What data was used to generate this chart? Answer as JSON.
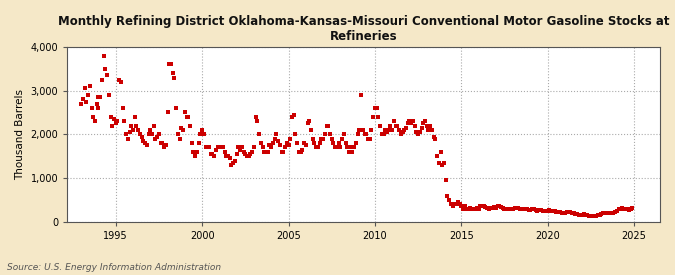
{
  "title": "Monthly Refining District Oklahoma-Kansas-Missouri Conventional Motor Gasoline Stocks at\nRefineries",
  "ylabel": "Thousand Barrels",
  "source": "Source: U.S. Energy Information Administration",
  "fig_background_color": "#f5e8c8",
  "plot_background_color": "#ffffff",
  "dot_color": "#cc0000",
  "ylim": [
    0,
    4000
  ],
  "yticks": [
    0,
    1000,
    2000,
    3000,
    4000
  ],
  "ytick_labels": [
    "0",
    "1,000",
    "2,000",
    "3,000",
    "4,000"
  ],
  "xticks": [
    1995,
    2000,
    2005,
    2010,
    2015,
    2020,
    2025
  ],
  "xlim_start": 1992.2,
  "xlim_end": 2026.5,
  "data": [
    [
      1993.0,
      2700
    ],
    [
      1993.1,
      2800
    ],
    [
      1993.2,
      3050
    ],
    [
      1993.3,
      2750
    ],
    [
      1993.4,
      2900
    ],
    [
      1993.5,
      3100
    ],
    [
      1993.6,
      2600
    ],
    [
      1993.7,
      2400
    ],
    [
      1993.8,
      2300
    ],
    [
      1993.9,
      2700
    ],
    [
      1993.95,
      2850
    ],
    [
      1994.0,
      2600
    ],
    [
      1994.1,
      2850
    ],
    [
      1994.2,
      3250
    ],
    [
      1994.3,
      3800
    ],
    [
      1994.4,
      3500
    ],
    [
      1994.5,
      3350
    ],
    [
      1994.6,
      2900
    ],
    [
      1994.7,
      2400
    ],
    [
      1994.8,
      2200
    ],
    [
      1994.9,
      2350
    ],
    [
      1995.0,
      2250
    ],
    [
      1995.1,
      2300
    ],
    [
      1995.2,
      3250
    ],
    [
      1995.3,
      3200
    ],
    [
      1995.4,
      2600
    ],
    [
      1995.5,
      2300
    ],
    [
      1995.6,
      2000
    ],
    [
      1995.7,
      1900
    ],
    [
      1995.8,
      2050
    ],
    [
      1995.9,
      2200
    ],
    [
      1996.0,
      2100
    ],
    [
      1996.1,
      2400
    ],
    [
      1996.2,
      2200
    ],
    [
      1996.3,
      2100
    ],
    [
      1996.4,
      2000
    ],
    [
      1996.5,
      1950
    ],
    [
      1996.6,
      1850
    ],
    [
      1996.7,
      1800
    ],
    [
      1996.8,
      1750
    ],
    [
      1996.9,
      2000
    ],
    [
      1997.0,
      2100
    ],
    [
      1997.1,
      2000
    ],
    [
      1997.2,
      2200
    ],
    [
      1997.3,
      1900
    ],
    [
      1997.4,
      1950
    ],
    [
      1997.5,
      2000
    ],
    [
      1997.6,
      1800
    ],
    [
      1997.7,
      1800
    ],
    [
      1997.8,
      1700
    ],
    [
      1997.9,
      1750
    ],
    [
      1998.0,
      2500
    ],
    [
      1998.1,
      3600
    ],
    [
      1998.2,
      3600
    ],
    [
      1998.3,
      3400
    ],
    [
      1998.4,
      3300
    ],
    [
      1998.5,
      2600
    ],
    [
      1998.6,
      2000
    ],
    [
      1998.7,
      1900
    ],
    [
      1998.8,
      2150
    ],
    [
      1998.9,
      2100
    ],
    [
      1999.0,
      2500
    ],
    [
      1999.1,
      2400
    ],
    [
      1999.2,
      2400
    ],
    [
      1999.3,
      2200
    ],
    [
      1999.4,
      1800
    ],
    [
      1999.5,
      1600
    ],
    [
      1999.6,
      1500
    ],
    [
      1999.7,
      1600
    ],
    [
      1999.8,
      1800
    ],
    [
      1999.9,
      2000
    ],
    [
      2000.0,
      2100
    ],
    [
      2000.1,
      2000
    ],
    [
      2000.2,
      1700
    ],
    [
      2000.3,
      1700
    ],
    [
      2000.4,
      1700
    ],
    [
      2000.5,
      1550
    ],
    [
      2000.6,
      1550
    ],
    [
      2000.7,
      1500
    ],
    [
      2000.8,
      1650
    ],
    [
      2000.9,
      1700
    ],
    [
      2001.0,
      1700
    ],
    [
      2001.1,
      1700
    ],
    [
      2001.2,
      1700
    ],
    [
      2001.3,
      1600
    ],
    [
      2001.4,
      1500
    ],
    [
      2001.5,
      1500
    ],
    [
      2001.6,
      1450
    ],
    [
      2001.7,
      1300
    ],
    [
      2001.8,
      1350
    ],
    [
      2001.9,
      1400
    ],
    [
      2002.0,
      1550
    ],
    [
      2002.1,
      1700
    ],
    [
      2002.2,
      1650
    ],
    [
      2002.3,
      1700
    ],
    [
      2002.4,
      1600
    ],
    [
      2002.5,
      1550
    ],
    [
      2002.6,
      1500
    ],
    [
      2002.7,
      1500
    ],
    [
      2002.8,
      1550
    ],
    [
      2002.9,
      1600
    ],
    [
      2003.0,
      1700
    ],
    [
      2003.1,
      2400
    ],
    [
      2003.2,
      2300
    ],
    [
      2003.3,
      2000
    ],
    [
      2003.4,
      1800
    ],
    [
      2003.5,
      1700
    ],
    [
      2003.6,
      1600
    ],
    [
      2003.7,
      1600
    ],
    [
      2003.8,
      1600
    ],
    [
      2003.9,
      1750
    ],
    [
      2004.0,
      1700
    ],
    [
      2004.1,
      1800
    ],
    [
      2004.2,
      1900
    ],
    [
      2004.3,
      2000
    ],
    [
      2004.4,
      1850
    ],
    [
      2004.5,
      1750
    ],
    [
      2004.6,
      1600
    ],
    [
      2004.7,
      1600
    ],
    [
      2004.8,
      1700
    ],
    [
      2004.9,
      1800
    ],
    [
      2005.0,
      1750
    ],
    [
      2005.1,
      1900
    ],
    [
      2005.2,
      2400
    ],
    [
      2005.3,
      2450
    ],
    [
      2005.4,
      2000
    ],
    [
      2005.5,
      1800
    ],
    [
      2005.6,
      1600
    ],
    [
      2005.7,
      1600
    ],
    [
      2005.8,
      1650
    ],
    [
      2005.9,
      1800
    ],
    [
      2006.0,
      1750
    ],
    [
      2006.1,
      2250
    ],
    [
      2006.2,
      2300
    ],
    [
      2006.3,
      2100
    ],
    [
      2006.4,
      1900
    ],
    [
      2006.5,
      1800
    ],
    [
      2006.6,
      1700
    ],
    [
      2006.7,
      1700
    ],
    [
      2006.8,
      1800
    ],
    [
      2006.9,
      1900
    ],
    [
      2007.0,
      1900
    ],
    [
      2007.1,
      2000
    ],
    [
      2007.2,
      2200
    ],
    [
      2007.3,
      2200
    ],
    [
      2007.4,
      2000
    ],
    [
      2007.5,
      1900
    ],
    [
      2007.6,
      1800
    ],
    [
      2007.7,
      1700
    ],
    [
      2007.8,
      1700
    ],
    [
      2007.9,
      1800
    ],
    [
      2008.0,
      1700
    ],
    [
      2008.1,
      1900
    ],
    [
      2008.2,
      2000
    ],
    [
      2008.3,
      1800
    ],
    [
      2008.4,
      1700
    ],
    [
      2008.5,
      1600
    ],
    [
      2008.6,
      1700
    ],
    [
      2008.7,
      1600
    ],
    [
      2008.8,
      1700
    ],
    [
      2008.9,
      1800
    ],
    [
      2009.0,
      2000
    ],
    [
      2009.1,
      2100
    ],
    [
      2009.2,
      2900
    ],
    [
      2009.3,
      2100
    ],
    [
      2009.4,
      2000
    ],
    [
      2009.5,
      2000
    ],
    [
      2009.6,
      1900
    ],
    [
      2009.7,
      1900
    ],
    [
      2009.8,
      2100
    ],
    [
      2009.9,
      2400
    ],
    [
      2010.0,
      2600
    ],
    [
      2010.1,
      2600
    ],
    [
      2010.2,
      2400
    ],
    [
      2010.3,
      2200
    ],
    [
      2010.4,
      2000
    ],
    [
      2010.5,
      2000
    ],
    [
      2010.6,
      2100
    ],
    [
      2010.7,
      2050
    ],
    [
      2010.8,
      2100
    ],
    [
      2010.9,
      2200
    ],
    [
      2011.0,
      2100
    ],
    [
      2011.1,
      2300
    ],
    [
      2011.2,
      2200
    ],
    [
      2011.3,
      2200
    ],
    [
      2011.4,
      2100
    ],
    [
      2011.5,
      2000
    ],
    [
      2011.6,
      2050
    ],
    [
      2011.7,
      2100
    ],
    [
      2011.8,
      2150
    ],
    [
      2011.9,
      2250
    ],
    [
      2012.0,
      2300
    ],
    [
      2012.1,
      2250
    ],
    [
      2012.2,
      2300
    ],
    [
      2012.3,
      2200
    ],
    [
      2012.4,
      2050
    ],
    [
      2012.5,
      2000
    ],
    [
      2012.6,
      2050
    ],
    [
      2012.7,
      2150
    ],
    [
      2012.8,
      2250
    ],
    [
      2012.9,
      2300
    ],
    [
      2013.0,
      2200
    ],
    [
      2013.1,
      2100
    ],
    [
      2013.2,
      2200
    ],
    [
      2013.3,
      2100
    ],
    [
      2013.4,
      1950
    ],
    [
      2013.5,
      1900
    ],
    [
      2013.6,
      1500
    ],
    [
      2013.7,
      1350
    ],
    [
      2013.8,
      1600
    ],
    [
      2013.9,
      1300
    ],
    [
      2014.0,
      1350
    ],
    [
      2014.1,
      950
    ],
    [
      2014.2,
      600
    ],
    [
      2014.3,
      500
    ],
    [
      2014.4,
      400
    ],
    [
      2014.5,
      350
    ],
    [
      2014.6,
      400
    ],
    [
      2014.7,
      400
    ],
    [
      2014.8,
      450
    ],
    [
      2014.9,
      400
    ],
    [
      2015.0,
      350
    ],
    [
      2015.1,
      300
    ],
    [
      2015.2,
      350
    ],
    [
      2015.3,
      280
    ],
    [
      2015.4,
      300
    ],
    [
      2015.5,
      320
    ],
    [
      2015.6,
      300
    ],
    [
      2015.7,
      280
    ],
    [
      2015.8,
      300
    ],
    [
      2015.9,
      320
    ],
    [
      2016.0,
      300
    ],
    [
      2016.1,
      350
    ],
    [
      2016.2,
      350
    ],
    [
      2016.3,
      350
    ],
    [
      2016.4,
      330
    ],
    [
      2016.5,
      320
    ],
    [
      2016.6,
      300
    ],
    [
      2016.7,
      310
    ],
    [
      2016.8,
      320
    ],
    [
      2016.9,
      330
    ],
    [
      2017.0,
      320
    ],
    [
      2017.1,
      350
    ],
    [
      2017.2,
      350
    ],
    [
      2017.3,
      340
    ],
    [
      2017.4,
      320
    ],
    [
      2017.5,
      300
    ],
    [
      2017.6,
      300
    ],
    [
      2017.7,
      290
    ],
    [
      2017.8,
      280
    ],
    [
      2017.9,
      280
    ],
    [
      2018.0,
      300
    ],
    [
      2018.1,
      320
    ],
    [
      2018.2,
      320
    ],
    [
      2018.3,
      310
    ],
    [
      2018.4,
      300
    ],
    [
      2018.5,
      290
    ],
    [
      2018.6,
      290
    ],
    [
      2018.7,
      280
    ],
    [
      2018.8,
      280
    ],
    [
      2018.9,
      270
    ],
    [
      2019.0,
      270
    ],
    [
      2019.1,
      280
    ],
    [
      2019.2,
      280
    ],
    [
      2019.3,
      260
    ],
    [
      2019.4,
      250
    ],
    [
      2019.5,
      260
    ],
    [
      2019.6,
      260
    ],
    [
      2019.7,
      250
    ],
    [
      2019.8,
      250
    ],
    [
      2019.9,
      240
    ],
    [
      2020.0,
      250
    ],
    [
      2020.1,
      260
    ],
    [
      2020.2,
      250
    ],
    [
      2020.3,
      250
    ],
    [
      2020.4,
      240
    ],
    [
      2020.5,
      230
    ],
    [
      2020.6,
      230
    ],
    [
      2020.7,
      220
    ],
    [
      2020.8,
      200
    ],
    [
      2020.9,
      210
    ],
    [
      2021.0,
      210
    ],
    [
      2021.1,
      220
    ],
    [
      2021.2,
      220
    ],
    [
      2021.3,
      220
    ],
    [
      2021.4,
      200
    ],
    [
      2021.5,
      190
    ],
    [
      2021.6,
      180
    ],
    [
      2021.7,
      170
    ],
    [
      2021.8,
      150
    ],
    [
      2021.9,
      160
    ],
    [
      2022.0,
      160
    ],
    [
      2022.1,
      170
    ],
    [
      2022.2,
      160
    ],
    [
      2022.3,
      150
    ],
    [
      2022.4,
      140
    ],
    [
      2022.5,
      130
    ],
    [
      2022.6,
      130
    ],
    [
      2022.7,
      130
    ],
    [
      2022.8,
      140
    ],
    [
      2022.9,
      150
    ],
    [
      2023.0,
      160
    ],
    [
      2023.1,
      170
    ],
    [
      2023.2,
      200
    ],
    [
      2023.3,
      200
    ],
    [
      2023.4,
      200
    ],
    [
      2023.5,
      200
    ],
    [
      2023.6,
      200
    ],
    [
      2023.7,
      200
    ],
    [
      2023.8,
      210
    ],
    [
      2023.9,
      220
    ],
    [
      2024.0,
      240
    ],
    [
      2024.1,
      280
    ],
    [
      2024.2,
      300
    ],
    [
      2024.3,
      310
    ],
    [
      2024.4,
      300
    ],
    [
      2024.5,
      290
    ],
    [
      2024.6,
      280
    ],
    [
      2024.7,
      270
    ],
    [
      2024.8,
      300
    ],
    [
      2024.9,
      310
    ]
  ]
}
